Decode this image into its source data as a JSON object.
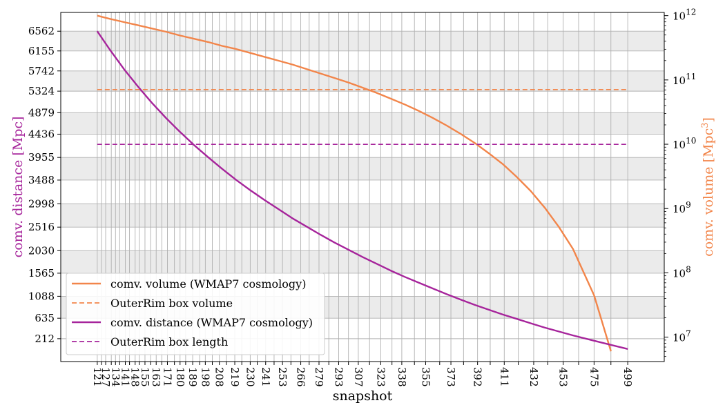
{
  "chart_data": {
    "type": "line",
    "xlabel": "snapshot",
    "ylabel_left": "comv. distance [Mpc]",
    "ylabel_right_main": "comv. volume [Mpc",
    "ylabel_right_sup": "3",
    "ylabel_right_close": "]",
    "x_ticks": [
      121,
      124,
      127,
      131,
      134,
      137,
      141,
      144,
      148,
      151,
      155,
      159,
      163,
      167,
      171,
      176,
      180,
      184,
      189,
      194,
      198,
      203,
      208,
      213,
      219,
      224,
      230,
      235,
      241,
      247,
      253,
      259,
      266,
      272,
      279,
      286,
      293,
      300,
      307,
      315,
      323,
      331,
      338,
      347,
      355,
      365,
      373,
      382,
      392,
      401,
      411,
      421,
      432,
      442,
      453,
      464,
      475,
      487,
      499
    ],
    "x_tick_labels": [
      "121",
      "",
      "127",
      "",
      "134",
      "",
      "141",
      "",
      "148",
      "",
      "155",
      "",
      "163",
      "",
      "171",
      "",
      "180",
      "",
      "189",
      "",
      "198",
      "",
      "208",
      "",
      "219",
      "",
      "230",
      "",
      "241",
      "",
      "253",
      "",
      "266",
      "",
      "279",
      "",
      "293",
      "",
      "307",
      "",
      "323",
      "",
      "338",
      "",
      "355",
      "",
      "373",
      "",
      "392",
      "",
      "411",
      "",
      "432",
      "",
      "453",
      "",
      "475",
      "",
      "499"
    ],
    "xlim": [
      95,
      525
    ],
    "left_axis": {
      "tick_values": [
        6562,
        6155,
        5742,
        5324,
        4879,
        4436,
        3955,
        3488,
        2998,
        2516,
        2030,
        1565,
        1088,
        635,
        212
      ],
      "tick_labels": [
        "6562",
        "6155",
        "5742",
        "5324",
        "4879",
        "4436",
        "3955",
        "3488",
        "2998",
        "2516",
        "2030",
        "1565",
        "1088",
        "635",
        "212"
      ],
      "ylim": [
        -260,
        6950
      ]
    },
    "right_axis": {
      "scale": "log",
      "ylim_log10": [
        6.62,
        12.05
      ],
      "tick_base": "10",
      "tick_exponents": [
        "7",
        "8",
        "9",
        "10",
        "11",
        "12"
      ]
    },
    "colors": {
      "volume": "#f2854a",
      "distance": "#a6249b",
      "band": "#ebebeb",
      "grid": "#b0b0b0"
    },
    "series": [
      {
        "name": "comv. volume (WMAP7 cosmology)",
        "axis": "right",
        "style": "solid",
        "color": "#f2854a",
        "x": [
          121,
          130,
          140,
          150,
          160,
          170,
          180,
          190,
          200,
          210,
          220,
          230,
          240,
          250,
          260,
          270,
          280,
          290,
          300,
          310,
          320,
          330,
          340,
          350,
          360,
          370,
          380,
          390,
          400,
          410,
          420,
          430,
          440,
          450,
          460,
          475,
          487
        ],
        "y_log10": [
          12.0,
          11.95,
          11.9,
          11.85,
          11.8,
          11.75,
          11.69,
          11.64,
          11.59,
          11.53,
          11.48,
          11.42,
          11.36,
          11.3,
          11.24,
          11.17,
          11.1,
          11.03,
          10.96,
          10.88,
          10.8,
          10.71,
          10.62,
          10.52,
          10.41,
          10.29,
          10.16,
          10.02,
          9.86,
          9.69,
          9.49,
          9.27,
          9.01,
          8.71,
          8.37,
          7.65,
          6.78
        ]
      },
      {
        "name": "OuterRim box volume",
        "axis": "right",
        "style": "dashed",
        "color": "#f2854a",
        "x": [
          121,
          499
        ],
        "y_log10": [
          10.85,
          10.85
        ]
      },
      {
        "name": "comv. distance (WMAP7 cosmology)",
        "axis": "left",
        "style": "solid",
        "color": "#a6249b",
        "x": [
          121,
          130,
          140,
          150,
          160,
          170,
          180,
          190,
          200,
          210,
          220,
          230,
          240,
          250,
          260,
          270,
          280,
          290,
          300,
          310,
          320,
          330,
          340,
          350,
          360,
          370,
          380,
          390,
          400,
          410,
          420,
          430,
          440,
          450,
          460,
          475,
          499
        ],
        "y": [
          6562,
          6180,
          5780,
          5420,
          5080,
          4770,
          4480,
          4210,
          3960,
          3720,
          3490,
          3280,
          3080,
          2890,
          2700,
          2530,
          2360,
          2200,
          2050,
          1900,
          1760,
          1620,
          1490,
          1370,
          1250,
          1130,
          1020,
          910,
          810,
          710,
          620,
          530,
          440,
          360,
          280,
          170,
          0
        ]
      },
      {
        "name": "OuterRim box length",
        "axis": "left",
        "style": "dashed",
        "color": "#a6249b",
        "x": [
          121,
          499
        ],
        "y": [
          4225,
          4225
        ]
      }
    ],
    "legend": {
      "placement": "lower-left",
      "entries": [
        {
          "label": "comv. volume (WMAP7 cosmology)",
          "color": "#f2854a",
          "style": "solid"
        },
        {
          "label": "OuterRim box volume",
          "color": "#f2854a",
          "style": "dashed"
        },
        {
          "label": "comv. distance (WMAP7 cosmology)",
          "color": "#a6249b",
          "style": "solid"
        },
        {
          "label": "OuterRim box length",
          "color": "#a6249b",
          "style": "dashed"
        }
      ]
    },
    "grid": true
  }
}
